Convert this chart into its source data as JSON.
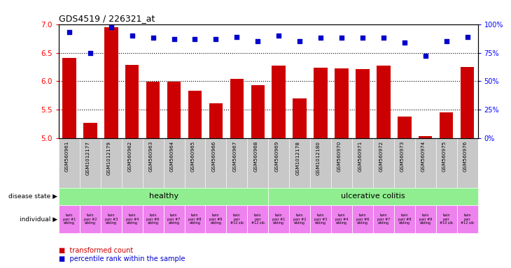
{
  "title": "GDS4519 / 226321_at",
  "x_labels": [
    "GSM560961",
    "GSM1012177",
    "GSM1012179",
    "GSM560962",
    "GSM560963",
    "GSM560964",
    "GSM560965",
    "GSM560966",
    "GSM560967",
    "GSM560968",
    "GSM560969",
    "GSM1012178",
    "GSM1012180",
    "GSM560970",
    "GSM560971",
    "GSM560972",
    "GSM560973",
    "GSM560974",
    "GSM560975",
    "GSM560976"
  ],
  "bar_values": [
    6.41,
    5.27,
    6.94,
    6.29,
    5.99,
    5.99,
    5.84,
    5.62,
    6.04,
    5.93,
    6.27,
    5.7,
    6.24,
    6.22,
    6.21,
    6.27,
    5.38,
    5.04,
    5.46,
    6.25
  ],
  "dot_values": [
    93,
    75,
    97,
    90,
    88,
    87,
    87,
    87,
    89,
    85,
    90,
    85,
    88,
    88,
    88,
    88,
    84,
    72,
    85,
    89
  ],
  "ylim": [
    5.0,
    7.0
  ],
  "yticks": [
    5.0,
    5.5,
    6.0,
    6.5,
    7.0
  ],
  "y2lim": [
    0,
    100
  ],
  "y2ticks": [
    0,
    25,
    50,
    75,
    100
  ],
  "bar_color": "#cc0000",
  "dot_color": "#0000cc",
  "bg_color": "#ffffff",
  "xticklabel_bg": "#c8c8c8",
  "disease_state_label": "disease state",
  "individual_label": "individual",
  "healthy_label": "healthy",
  "uc_label": "ulcerative colitis",
  "healthy_color": "#90ee90",
  "uc_color": "#90ee90",
  "individual_labels_healthy": [
    "twin\npair #1\nsibling",
    "twin\npair #2\nsibling",
    "twin\npair #3\nsibling",
    "twin\npair #4\nsibling",
    "twin\npair #6\nsibling",
    "twin\npair #7\nsibling",
    "twin\npair #8\nsibling",
    "twin\npair #9\nsibling",
    "twin\npair\n#10 sib",
    "twin\npair\n#12 sib"
  ],
  "individual_labels_uc": [
    "twin\npair #1\nsibling",
    "twin\npair #2\nsibling",
    "twin\npair #3\nsibling",
    "twin\npair #4\nsibling",
    "twin\npair #6\nsibling",
    "twin\npair #7\nsibling",
    "twin\npair #8\nsibling",
    "twin\npair #9\nsibling",
    "twin\npair\n#10 sib",
    "twin\npair\n#12 sib"
  ],
  "legend_bar_label": "transformed count",
  "legend_dot_label": "percentile rank within the sample",
  "healthy_count": 10,
  "uc_count": 10
}
